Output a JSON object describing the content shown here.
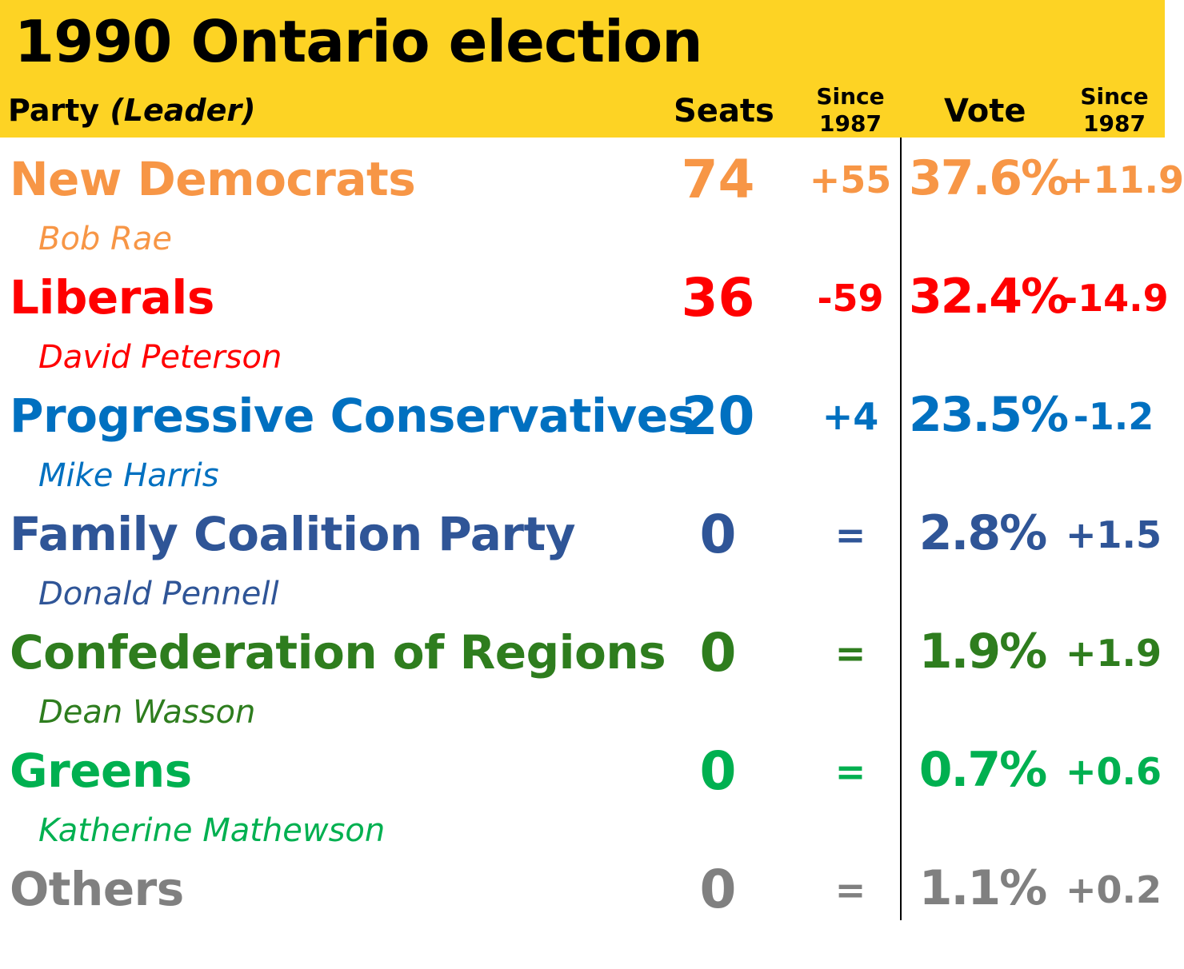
{
  "title": "1990 Ontario election",
  "headers": {
    "party": "Party",
    "leader": "(Leader)",
    "seats": "Seats",
    "since1": "Since",
    "since1_year": "1987",
    "vote": "Vote",
    "since2": "Since",
    "since2_year": "1987"
  },
  "rows": [
    {
      "party": "New Democrats",
      "leader": "Bob Rae",
      "seats": "74",
      "seat_change": "+55",
      "vote": "37.6%",
      "vote_change": "+11.9",
      "color": "#f79646"
    },
    {
      "party": "Liberals",
      "leader": "David Peterson",
      "seats": "36",
      "seat_change": "-59",
      "vote": "32.4%",
      "vote_change": "-14.9",
      "color": "#ff0000"
    },
    {
      "party": "Progressive Conservatives",
      "leader": "Mike Harris",
      "seats": "20",
      "seat_change": "+4",
      "vote": "23.5%",
      "vote_change": "-1.2",
      "color": "#0070c0"
    },
    {
      "party": "Family Coalition Party",
      "leader": "Donald Pennell",
      "seats": "0",
      "seat_change": "=",
      "vote": "2.8%",
      "vote_change": "+1.5",
      "color": "#2f5597"
    },
    {
      "party": "Confederation of Regions",
      "leader": "Dean Wasson",
      "seats": "0",
      "seat_change": "=",
      "vote": "1.9%",
      "vote_change": "+1.9",
      "color": "#2e7d1e"
    },
    {
      "party": "Greens",
      "leader": "Katherine Mathewson",
      "seats": "0",
      "seat_change": "=",
      "vote": "0.7%",
      "vote_change": "+0.6",
      "color": "#00b050"
    },
    {
      "party": "Others",
      "leader": "",
      "seats": "0",
      "seat_change": "=",
      "vote": "1.1%",
      "vote_change": "+0.2",
      "color": "#808080"
    }
  ]
}
